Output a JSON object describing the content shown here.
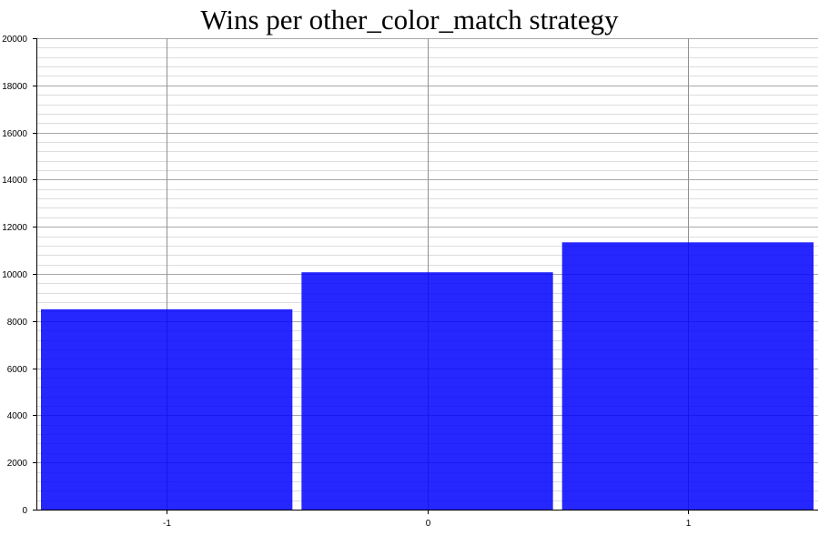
{
  "chart_data": {
    "type": "bar",
    "title": "Wins per other_color_match strategy",
    "xlabel": "",
    "ylabel": "",
    "categories": [
      "-1",
      "0",
      "1"
    ],
    "values": [
      8500,
      10070,
      11340
    ],
    "ylim": [
      0,
      20000
    ],
    "yticks": [
      0,
      2000,
      4000,
      6000,
      8000,
      10000,
      12000,
      14000,
      16000,
      18000,
      20000
    ],
    "minor_grid_step": 400,
    "grid": true,
    "legend": "none",
    "bar_color": "#0000ff",
    "bar_opacity": 0.85
  }
}
